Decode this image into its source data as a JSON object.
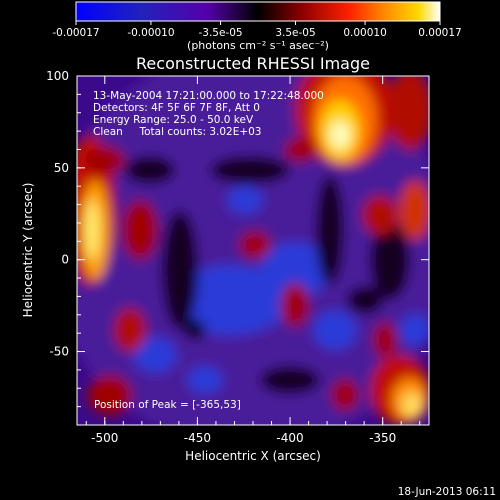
{
  "colorbar": {
    "tick_labels": [
      "-0.00017",
      "-0.00010",
      "-3.5e-05",
      "3.5e-05",
      "0.00010",
      "0.00017"
    ],
    "unit_label": "(photons cm⁻² s⁻¹ asec⁻²)",
    "colors": [
      "#0000ff",
      "#2020c0",
      "#4b0082",
      "#000000",
      "#8b0000",
      "#ff0000",
      "#ff8c00",
      "#ffd700",
      "#ffffff"
    ]
  },
  "figure": {
    "title": "Reconstructed RHESSI Image",
    "info_lines": [
      "13-May-2004 17:21:00.000 to 17:22:48.000",
      "Detectors: 4F 5F 6F 7F 8F, Att 0",
      "Energy Range: 25.0 - 50.0 keV",
      "Clean     Total counts: 3.02E+03"
    ],
    "peak_label": "Position of Peak = [-365,53]",
    "xlabel": "Heliocentric X (arcsec)",
    "ylabel": "Heliocentric Y (arcsec)",
    "x_ticks": [
      "-500",
      "-450",
      "-400",
      "-350"
    ],
    "y_ticks": [
      "100",
      "50",
      "0",
      "-50"
    ],
    "date_stamp": "18-Jun-2013 06:11"
  },
  "chart_data": {
    "type": "heatmap",
    "title": "Reconstructed RHESSI Image",
    "xlabel": "Heliocentric X (arcsec)",
    "ylabel": "Heliocentric Y (arcsec)",
    "xlim": [
      -515,
      -325
    ],
    "ylim": [
      -90,
      100
    ],
    "value_range": [
      -0.00017,
      0.00017
    ],
    "colormap": [
      "#0000ff",
      "#2020c0",
      "#4b0082",
      "#000000",
      "#8b0000",
      "#ff0000",
      "#ff8c00",
      "#ffd700",
      "#ffffff"
    ],
    "peak": {
      "x": -365,
      "y": 53
    }
  }
}
